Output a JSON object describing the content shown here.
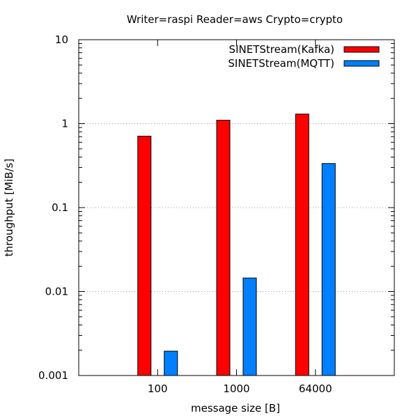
{
  "chart_data": {
    "type": "bar",
    "title": "Writer=raspi Reader=aws Crypto=crypto",
    "xlabel": "message size [B]",
    "ylabel": "throughput [MiB/s]",
    "categories": [
      "100",
      "1000",
      "64000"
    ],
    "yscale": "log",
    "ylim": [
      0.001,
      10
    ],
    "yticks": [
      "0.001",
      "0.01",
      "0.1",
      "1",
      "10"
    ],
    "grid": true,
    "legend_position": "top-right",
    "series": [
      {
        "name": "SINETStream(Kafka)",
        "color": "#ff0000",
        "values": [
          0.71,
          1.1,
          1.3
        ]
      },
      {
        "name": "SINETStream(MQTT)",
        "color": "#0080ff",
        "values": [
          0.00195,
          0.0145,
          0.335
        ]
      }
    ]
  }
}
